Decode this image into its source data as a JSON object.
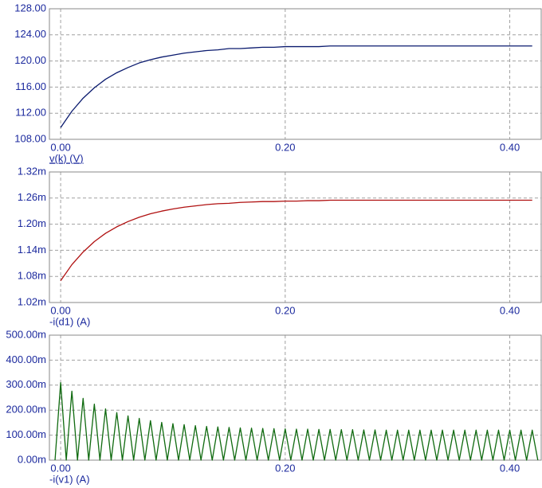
{
  "chart_data": [
    {
      "type": "line",
      "x": [
        0,
        0.01,
        0.02,
        0.03,
        0.04,
        0.05,
        0.06,
        0.07,
        0.08,
        0.09,
        0.1,
        0.11,
        0.12,
        0.13,
        0.14,
        0.15,
        0.16,
        0.17,
        0.18,
        0.19,
        0.2,
        0.21,
        0.22,
        0.23,
        0.24,
        0.25,
        0.26,
        0.27,
        0.28,
        0.29,
        0.3,
        0.31,
        0.32,
        0.33,
        0.34,
        0.35,
        0.36,
        0.37,
        0.38,
        0.39,
        0.4,
        0.41,
        0.42
      ],
      "series": [
        {
          "name": "v(k) (V)",
          "color": "#0a1a6e",
          "values": [
            109.8,
            112.3,
            114.3,
            115.9,
            117.2,
            118.2,
            119.0,
            119.7,
            120.2,
            120.6,
            120.9,
            121.2,
            121.4,
            121.6,
            121.7,
            121.9,
            121.9,
            122.0,
            122.1,
            122.1,
            122.2,
            122.2,
            122.2,
            122.2,
            122.3,
            122.3,
            122.3,
            122.3,
            122.3,
            122.3,
            122.3,
            122.3,
            122.3,
            122.3,
            122.3,
            122.3,
            122.3,
            122.3,
            122.3,
            122.3,
            122.3,
            122.3,
            122.3
          ]
        }
      ],
      "xlim": [
        -0.01,
        0.428
      ],
      "xticks": [
        {
          "value": 0,
          "label": "0.00"
        },
        {
          "value": 0.2,
          "label": "0.20"
        },
        {
          "value": 0.4,
          "label": "0.40"
        }
      ],
      "ylim": [
        108,
        128
      ],
      "yticks": [
        {
          "value": 108,
          "label": "108.00"
        },
        {
          "value": 112,
          "label": "112.00"
        },
        {
          "value": 116,
          "label": "116.00"
        },
        {
          "value": 120,
          "label": "120.00"
        },
        {
          "value": 124,
          "label": "124.00"
        },
        {
          "value": 128,
          "label": "128.00"
        }
      ],
      "grid": true
    },
    {
      "type": "line",
      "x": [
        0,
        0.01,
        0.02,
        0.03,
        0.04,
        0.05,
        0.06,
        0.07,
        0.08,
        0.09,
        0.1,
        0.11,
        0.12,
        0.13,
        0.14,
        0.15,
        0.16,
        0.17,
        0.18,
        0.19,
        0.2,
        0.21,
        0.22,
        0.23,
        0.24,
        0.25,
        0.26,
        0.27,
        0.28,
        0.29,
        0.3,
        0.31,
        0.32,
        0.33,
        0.34,
        0.35,
        0.36,
        0.37,
        0.38,
        0.39,
        0.4,
        0.41,
        0.42
      ],
      "series": [
        {
          "name": "-i(d1) (A)",
          "color": "#b01010",
          "values": [
            0.00107,
            0.001107,
            0.001136,
            0.00116,
            0.001179,
            0.001194,
            0.001206,
            0.001216,
            0.001224,
            0.00123,
            0.001235,
            0.001239,
            0.001242,
            0.001245,
            0.001247,
            0.001248,
            0.00125,
            0.001251,
            0.001252,
            0.001252,
            0.001253,
            0.001253,
            0.001254,
            0.001254,
            0.001255,
            0.001255,
            0.001255,
            0.001255,
            0.001255,
            0.001255,
            0.001255,
            0.001255,
            0.001255,
            0.001255,
            0.001255,
            0.001255,
            0.001255,
            0.001255,
            0.001255,
            0.001255,
            0.001255,
            0.001255,
            0.001255
          ]
        }
      ],
      "xlim": [
        -0.01,
        0.428
      ],
      "xticks": [
        {
          "value": 0,
          "label": "0.00"
        },
        {
          "value": 0.2,
          "label": "0.20"
        },
        {
          "value": 0.4,
          "label": "0.40"
        }
      ],
      "ylim": [
        0.00102,
        0.00132
      ],
      "yticks": [
        {
          "value": 0.00102,
          "label": "1.02m"
        },
        {
          "value": 0.00108,
          "label": "1.08m"
        },
        {
          "value": 0.00114,
          "label": "1.14m"
        },
        {
          "value": 0.0012,
          "label": "1.20m"
        },
        {
          "value": 0.00126,
          "label": "1.26m"
        },
        {
          "value": 0.00132,
          "label": "1.32m"
        }
      ],
      "grid": true
    },
    {
      "type": "line",
      "x": [
        -0.005,
        0,
        0.005,
        0.01,
        0.015,
        0.02,
        0.025,
        0.03,
        0.035,
        0.04,
        0.045,
        0.05,
        0.055,
        0.06,
        0.065,
        0.07,
        0.075,
        0.08,
        0.085,
        0.09,
        0.095,
        0.1,
        0.105,
        0.11,
        0.115,
        0.12,
        0.125,
        0.13,
        0.135,
        0.14,
        0.145,
        0.15,
        0.155,
        0.16,
        0.165,
        0.17,
        0.175,
        0.18,
        0.185,
        0.19,
        0.195,
        0.2,
        0.205,
        0.21,
        0.215,
        0.22,
        0.225,
        0.23,
        0.235,
        0.24,
        0.245,
        0.25,
        0.255,
        0.26,
        0.265,
        0.27,
        0.275,
        0.28,
        0.285,
        0.29,
        0.295,
        0.3,
        0.305,
        0.31,
        0.315,
        0.32,
        0.325,
        0.33,
        0.335,
        0.34,
        0.345,
        0.35,
        0.355,
        0.36,
        0.365,
        0.37,
        0.375,
        0.38,
        0.385,
        0.39,
        0.395,
        0.4,
        0.405,
        0.41,
        0.415,
        0.42,
        0.425
      ],
      "series": [
        {
          "name": "-i(v1) (A)",
          "color": "#0f6a0f",
          "values": [
            0,
            0.31,
            0,
            0.276,
            0,
            0.247,
            0,
            0.224,
            0,
            0.205,
            0,
            0.19,
            0,
            0.177,
            0,
            0.167,
            0,
            0.158,
            0,
            0.151,
            0,
            0.146,
            0,
            0.142,
            0,
            0.138,
            0,
            0.135,
            0,
            0.133,
            0,
            0.131,
            0,
            0.129,
            0,
            0.128,
            0,
            0.127,
            0,
            0.126,
            0,
            0.125,
            0,
            0.124,
            0,
            0.124,
            0,
            0.123,
            0,
            0.123,
            0,
            0.122,
            0,
            0.122,
            0,
            0.121,
            0,
            0.121,
            0,
            0.12,
            0,
            0.12,
            0,
            0.12,
            0,
            0.12,
            0,
            0.12,
            0,
            0.12,
            0,
            0.12,
            0,
            0.12,
            0,
            0.12,
            0,
            0.12,
            0,
            0.12,
            0,
            0.12,
            0,
            0.12,
            0,
            0.12,
            0
          ]
        }
      ],
      "xlim": [
        -0.01,
        0.428
      ],
      "xticks": [
        {
          "value": 0,
          "label": "0.00"
        },
        {
          "value": 0.2,
          "label": "0.20"
        },
        {
          "value": 0.4,
          "label": "0.40"
        }
      ],
      "ylim": [
        0,
        0.5
      ],
      "yticks": [
        {
          "value": 0,
          "label": "0.00m"
        },
        {
          "value": 0.1,
          "label": "100.00m"
        },
        {
          "value": 0.2,
          "label": "200.00m"
        },
        {
          "value": 0.3,
          "label": "300.00m"
        },
        {
          "value": 0.4,
          "label": "400.00m"
        },
        {
          "value": 0.5,
          "label": "500.00m"
        }
      ],
      "grid": true
    }
  ]
}
